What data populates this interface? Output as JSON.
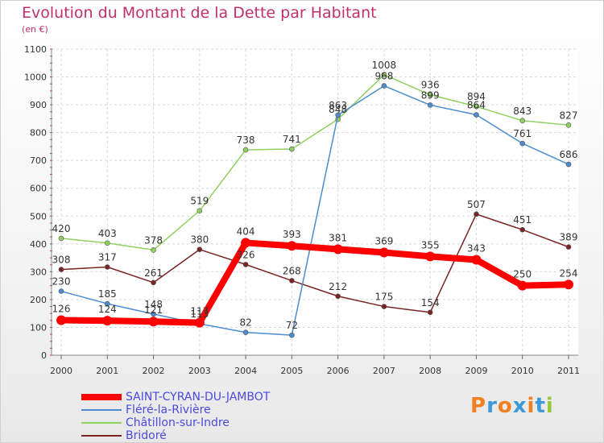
{
  "header": {
    "title": "Evolution du Montant de la Dette par Habitant",
    "unit": "(en €)"
  },
  "logo": {
    "letters": [
      "P",
      "r",
      "o",
      "x",
      "i",
      "t",
      "i"
    ],
    "colors": [
      "#f08020",
      "#3c9ad8",
      "#f08020",
      "#3c9ad8",
      "#f08020",
      "#3c9ad8",
      "#9ac83c"
    ]
  },
  "chart_data": {
    "type": "line",
    "title": "Evolution du Montant de la Dette par Habitant",
    "ylabel": "(en €)",
    "xlabel": "",
    "x": [
      "2000",
      "2001",
      "2002",
      "2003",
      "2004",
      "2005",
      "2006",
      "2007",
      "2008",
      "2009",
      "2010",
      "2011"
    ],
    "ylim": [
      0,
      1100
    ],
    "yticks": [
      "0",
      "100",
      "200",
      "300",
      "400",
      "500",
      "600",
      "700",
      "800",
      "900",
      "1000",
      "1100"
    ],
    "grid": true,
    "legend": "bottom-left",
    "series": [
      {
        "name": "SAINT-CYRAN-DU-JAMBOT",
        "color": "#ff0000",
        "values": [
          126,
          124,
          121,
          117,
          404,
          393,
          381,
          369,
          355,
          343,
          250,
          254
        ],
        "labels": [
          "126",
          "124",
          "121",
          "117",
          "404",
          "393",
          "381",
          "369",
          "355",
          "343",
          "250",
          "254"
        ]
      },
      {
        "name": "Fléré-la-Rivière",
        "color": "#4c8cd0",
        "values": [
          230,
          185,
          148,
          113,
          82,
          72,
          863,
          968,
          899,
          864,
          761,
          686
        ],
        "labels": [
          "230",
          "185",
          "148",
          "113",
          "82",
          "72",
          "863",
          "968",
          "899",
          "864",
          "761",
          "686"
        ]
      },
      {
        "name": "Châtillon-sur-Indre",
        "color": "#90d060",
        "values": [
          420,
          403,
          378,
          519,
          738,
          741,
          848,
          1008,
          936,
          894,
          843,
          827
        ],
        "labels": [
          "420",
          "403",
          "378",
          "519",
          "738",
          "741",
          "848",
          "1008",
          "936",
          "894",
          "843",
          "827"
        ]
      },
      {
        "name": "Bridoré",
        "color": "#7a2424",
        "values": [
          308,
          317,
          261,
          380,
          326,
          268,
          212,
          175,
          154,
          507,
          451,
          389
        ],
        "labels": [
          "308",
          "317",
          "261",
          "380",
          "326",
          "268",
          "212",
          "175",
          "154",
          "507",
          "451",
          "389"
        ]
      }
    ]
  }
}
